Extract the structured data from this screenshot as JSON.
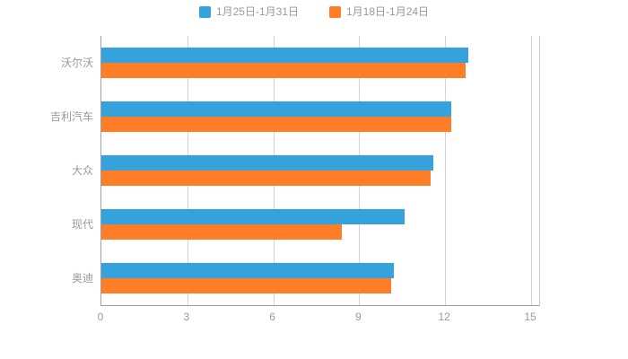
{
  "chart_data": {
    "type": "bar",
    "orientation": "horizontal",
    "title": "",
    "xlabel": "",
    "ylabel": "",
    "categories": [
      "沃尔沃",
      "吉利汽车",
      "大众",
      "现代",
      "奥迪"
    ],
    "series": [
      {
        "name": "1月25日-1月31日",
        "color": "#36a2db",
        "values": [
          12.8,
          12.2,
          11.6,
          10.6,
          10.2
        ]
      },
      {
        "name": "1月18日-1月24日",
        "color": "#ff7d26",
        "values": [
          12.7,
          12.2,
          11.5,
          8.4,
          10.1
        ]
      }
    ],
    "xlim": [
      0,
      15
    ],
    "xticks": [
      0,
      3,
      6,
      9,
      12,
      15
    ],
    "legend_position": "top",
    "grid": true,
    "background": "#ffffff"
  }
}
